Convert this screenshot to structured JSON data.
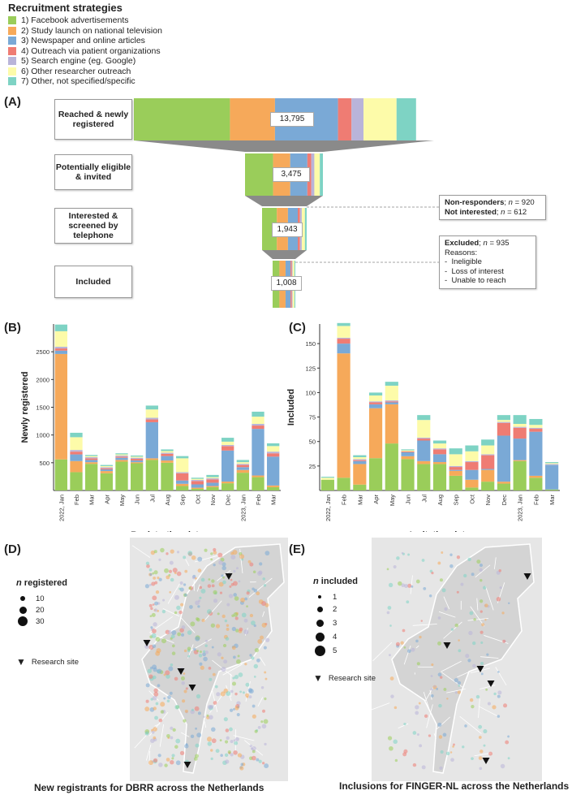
{
  "legend": {
    "title": "Recruitment strategies",
    "items": [
      {
        "label": "1) Facebook advertisements",
        "color": "#9acd5a"
      },
      {
        "label": "2) Study launch on national television",
        "color": "#f6a95a"
      },
      {
        "label": "3) Newspaper and online articles",
        "color": "#7aa9d6"
      },
      {
        "label": "4) Outreach via patient organizations",
        "color": "#ef7c73"
      },
      {
        "label": "5) Search engine (eg. Google)",
        "color": "#b9b4d9"
      },
      {
        "label": "6) Other researcher outreach",
        "color": "#fdfba9"
      },
      {
        "label": "7) Other, not specified/specific",
        "color": "#7ed3c4"
      }
    ]
  },
  "panels": {
    "a": "(A)",
    "b": "(B)",
    "c": "(C)",
    "d": "(D)",
    "e": "(E)"
  },
  "funnel": {
    "stages": [
      {
        "label": "Reached & newly registered",
        "count": "13,795",
        "shares": [
          0.32,
          0.15,
          0.21,
          0.045,
          0.04,
          0.11,
          0.065
        ]
      },
      {
        "label": "Potentially eligible & invited",
        "count": "3,475",
        "shares": [
          0.36,
          0.22,
          0.22,
          0.05,
          0.04,
          0.07,
          0.04
        ]
      },
      {
        "label": "Interested & screened by telephone",
        "count": "1,943",
        "shares": [
          0.33,
          0.25,
          0.22,
          0.05,
          0.04,
          0.07,
          0.04
        ]
      },
      {
        "label": "Included",
        "count": "1,008",
        "shares": [
          0.3,
          0.27,
          0.22,
          0.05,
          0.04,
          0.08,
          0.04
        ]
      }
    ],
    "notes": {
      "nonresp_label": "Non-responders",
      "nonresp_n": "920",
      "notint_label": "Not interested",
      "notint_n": "612",
      "excluded_label": "Excluded",
      "excluded_n": "935",
      "reasons_title": "Reasons:",
      "reasons": [
        "Ineligible",
        "Loss of interest",
        "Unable to reach"
      ]
    }
  },
  "chart_data": [
    {
      "type": "bar",
      "stacked": true,
      "title": "",
      "xlabel": "Registration date",
      "ylabel": "Newly registered",
      "categories": [
        "2022, Jan",
        "Feb",
        "Mar",
        "Apr",
        "May",
        "Jun",
        "Jul",
        "Aug",
        "Sep",
        "Oct",
        "Nov",
        "Dec",
        "2023, Jan",
        "Feb",
        "Mar"
      ],
      "ylim": [
        0,
        3000
      ],
      "yticks": [
        500,
        1000,
        1500,
        2000,
        2500
      ],
      "series": [
        {
          "name": "1) Facebook advertisements",
          "values": [
            560,
            330,
            480,
            310,
            520,
            490,
            550,
            500,
            80,
            30,
            60,
            130,
            320,
            240,
            60
          ]
        },
        {
          "name": "2) Study launch on national television",
          "values": [
            1900,
            200,
            30,
            40,
            30,
            20,
            30,
            40,
            40,
            20,
            20,
            30,
            50,
            30,
            30
          ]
        },
        {
          "name": "3) Newspaper and online articles",
          "values": [
            60,
            120,
            40,
            30,
            40,
            30,
            650,
            80,
            60,
            60,
            60,
            560,
            50,
            840,
            520
          ]
        },
        {
          "name": "4) Outreach via patient organizations",
          "values": [
            40,
            50,
            30,
            20,
            20,
            30,
            50,
            40,
            130,
            60,
            60,
            80,
            40,
            60,
            60
          ]
        },
        {
          "name": "5) Search engine (eg. Google)",
          "values": [
            30,
            30,
            20,
            20,
            20,
            20,
            30,
            20,
            20,
            20,
            20,
            20,
            20,
            30,
            30
          ]
        },
        {
          "name": "6) Other researcher outreach",
          "values": [
            280,
            230,
            20,
            20,
            20,
            20,
            150,
            30,
            250,
            20,
            20,
            60,
            30,
            130,
            100
          ]
        },
        {
          "name": "7) Other, not specified/specific",
          "values": [
            120,
            80,
            20,
            20,
            20,
            20,
            70,
            30,
            40,
            20,
            40,
            70,
            40,
            90,
            50
          ]
        }
      ]
    },
    {
      "type": "bar",
      "stacked": true,
      "title": "",
      "xlabel": "Invitation date",
      "ylabel": "Included",
      "categories": [
        "2022, Jan",
        "Feb",
        "Mar",
        "Apr",
        "May",
        "Jun",
        "Jul",
        "Aug",
        "Sep",
        "Oct",
        "Nov",
        "Dec",
        "2023, Jan",
        "Feb",
        "Mar"
      ],
      "ylim": [
        0,
        170
      ],
      "yticks": [
        25,
        50,
        75,
        100,
        125,
        150
      ],
      "series": [
        {
          "name": "1) Facebook advertisements",
          "values": [
            11,
            13,
            6,
            33,
            48,
            32,
            27,
            27,
            15,
            3,
            9,
            7,
            30,
            13,
            1
          ]
        },
        {
          "name": "2) Study launch on national television",
          "values": [
            0,
            127,
            21,
            51,
            40,
            3,
            3,
            2,
            5,
            8,
            12,
            2,
            1,
            2,
            0
          ]
        },
        {
          "name": "3) Newspaper and online articles",
          "values": [
            0,
            10,
            3,
            4,
            2,
            4,
            21,
            8,
            1,
            10,
            1,
            47,
            22,
            45,
            25
          ]
        },
        {
          "name": "4) Outreach via patient organizations",
          "values": [
            0,
            5,
            1,
            2,
            1,
            1,
            2,
            5,
            3,
            8,
            14,
            13,
            11,
            3,
            0
          ]
        },
        {
          "name": "5) Search engine (eg. Google)",
          "values": [
            0,
            1,
            1,
            1,
            1,
            0,
            1,
            1,
            1,
            1,
            1,
            1,
            1,
            1,
            1
          ]
        },
        {
          "name": "6) Other researcher outreach",
          "values": [
            2,
            12,
            2,
            6,
            15,
            1,
            18,
            5,
            12,
            10,
            9,
            2,
            3,
            3,
            1
          ]
        },
        {
          "name": "7) Other, not specified/specific",
          "values": [
            1,
            3,
            2,
            3,
            4,
            1,
            5,
            3,
            6,
            6,
            6,
            5,
            9,
            6,
            1
          ]
        }
      ]
    }
  ],
  "map_d": {
    "legend_title_n": "n",
    "legend_title_rest": " registered",
    "sizes": [
      "10",
      "20",
      "30"
    ],
    "site_label": "Research site",
    "caption": "New registrants for DBRR across the Netherlands"
  },
  "map_e": {
    "legend_title_n": "n",
    "legend_title_rest": " included",
    "sizes": [
      "1",
      "2",
      "3",
      "4",
      "5"
    ],
    "site_label": "Research site",
    "caption": "Inclusions for FINGER-NL across the Netherlands"
  }
}
